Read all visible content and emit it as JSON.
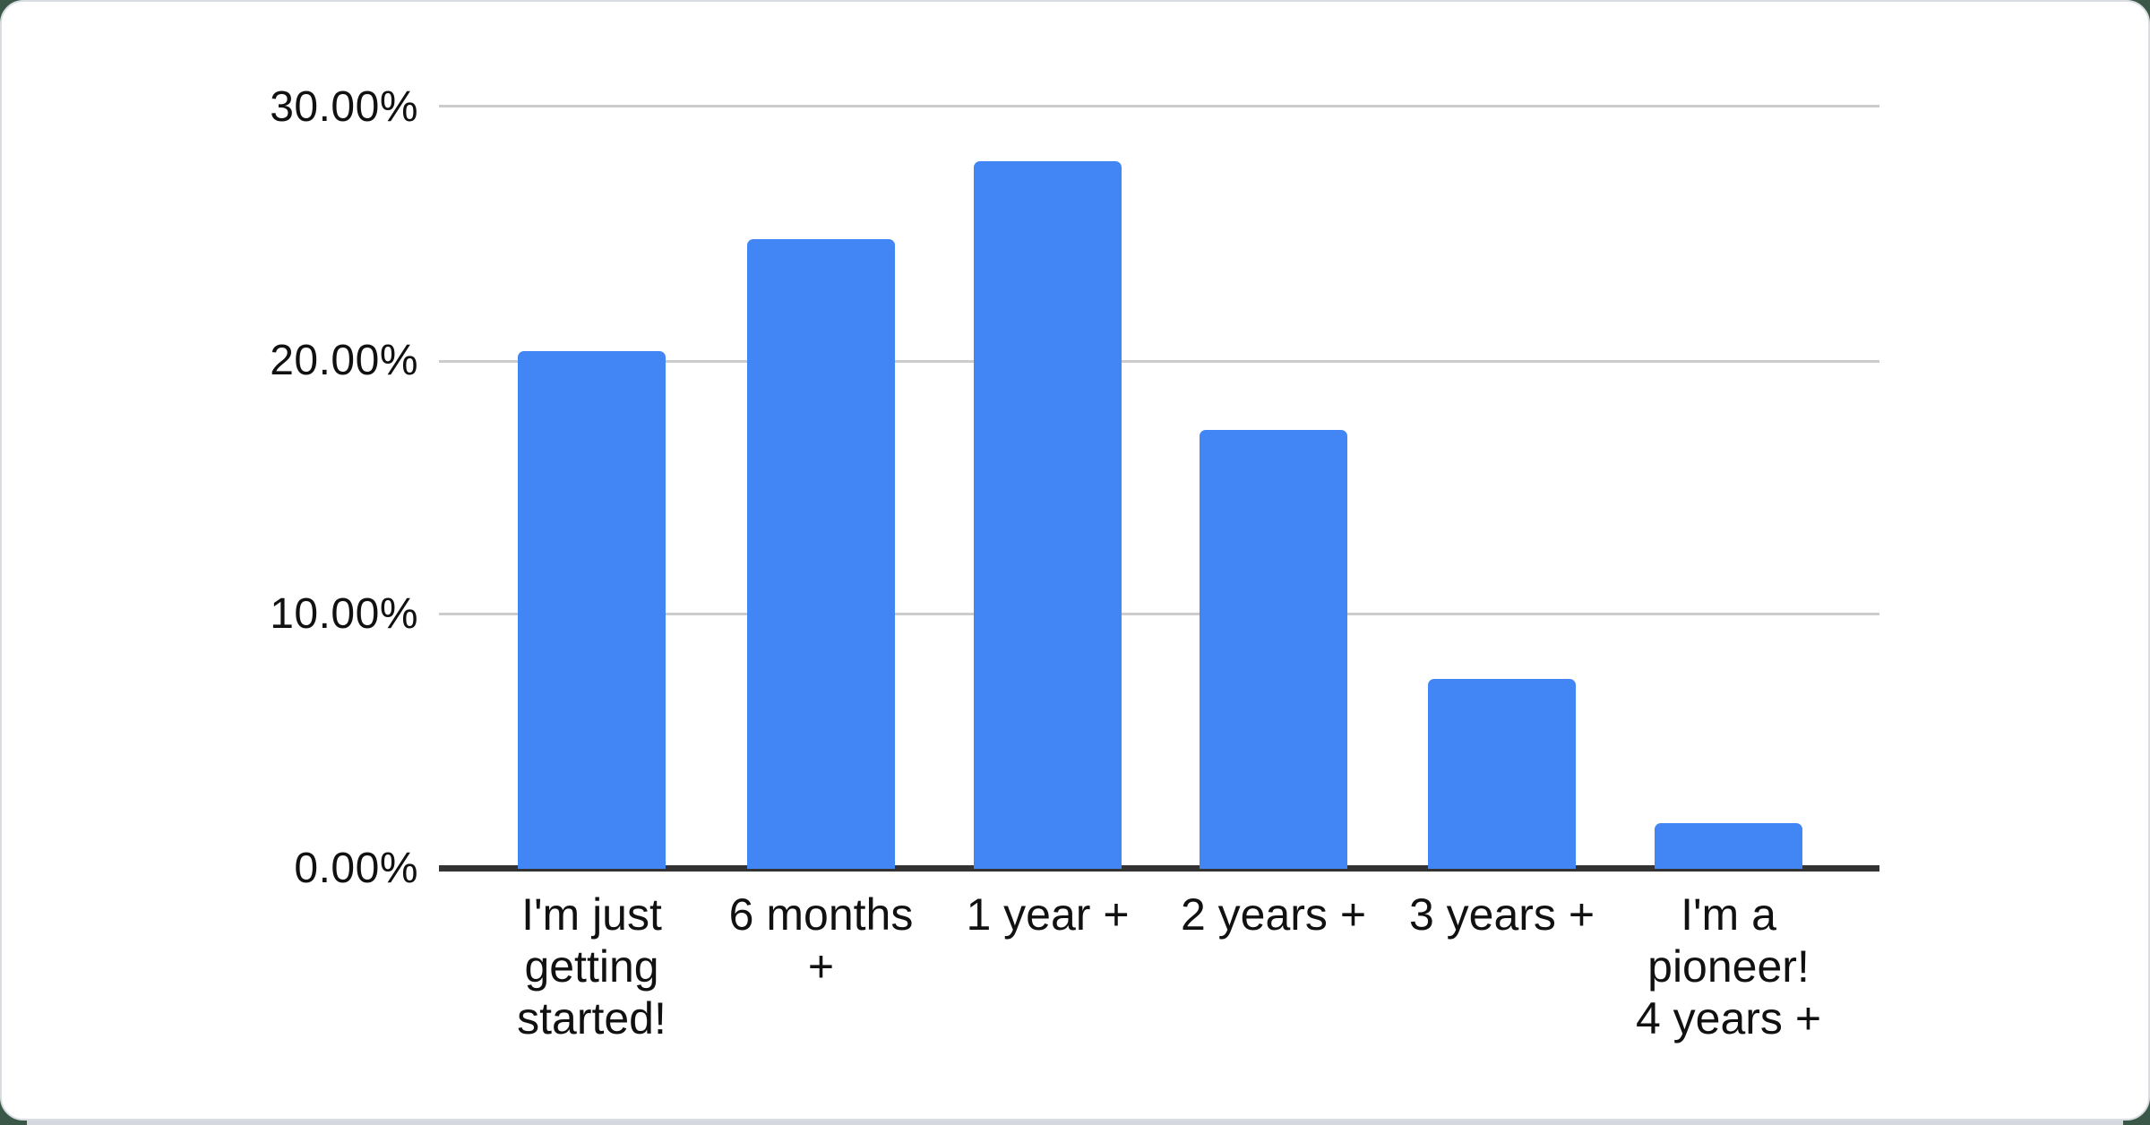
{
  "page": {
    "background_color": "#3b5747",
    "card_color": "#ffffff",
    "card_edge_color": "#d9dde2"
  },
  "chart_data": {
    "type": "bar",
    "title": "",
    "xlabel": "",
    "ylabel": "",
    "categories": [
      "I'm just getting started!",
      "6 months +",
      "1 year +",
      "2 years +",
      "3 years +",
      "I'm a pioneer! 4 years +"
    ],
    "values": [
      20.4,
      24.8,
      27.9,
      17.3,
      7.5,
      1.8
    ],
    "unit": "%",
    "bar_color": "#4285F4",
    "ylim": [
      0,
      30
    ],
    "ytick_values": [
      30,
      20,
      10,
      0
    ],
    "yticks": [
      "30.00%",
      "20.00%",
      "10.00%",
      "0.00%"
    ],
    "grid": true,
    "gridline_color": "#cccccc",
    "axis_line_color": "#333333",
    "legend": "none"
  },
  "xaxis": {
    "tick_labels": [
      "I'm just\ngetting\nstarted!",
      "6 months\n+",
      "1 year +",
      "2 years +",
      "3 years +",
      "I'm a\npioneer!\n4 years +"
    ]
  }
}
